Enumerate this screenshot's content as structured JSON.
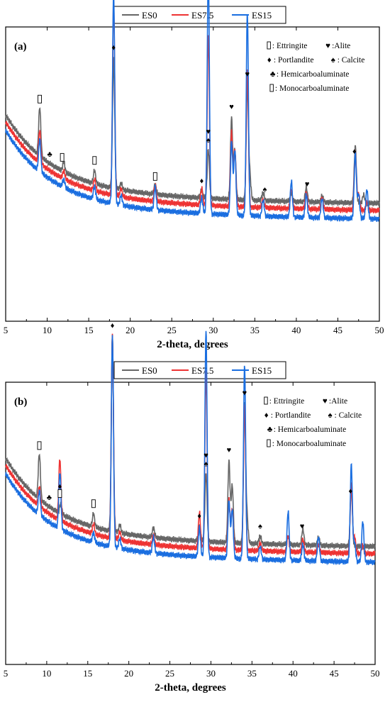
{
  "legend_items": [
    {
      "name": "ES0",
      "color": "#666666"
    },
    {
      "name": "ES7.5",
      "color": "#ee3333"
    },
    {
      "name": "ES15",
      "color": "#1a6ee0"
    }
  ],
  "phase_key": [
    {
      "symbol": "box",
      "text": ": Ettringite"
    },
    {
      "symbol": "♥",
      "text": ":Alite"
    },
    {
      "symbol": "♦",
      "text": ": Portlandite"
    },
    {
      "symbol": "♠",
      "text": ": Calcite"
    },
    {
      "symbol": "♣",
      "text": ": Hemicarboaluminate"
    },
    {
      "symbol": "box",
      "text": " : Monocarboaluminate"
    }
  ],
  "chart_data": [
    {
      "type": "line",
      "panel_label": "(a)",
      "xlabel": "2-theta, degrees",
      "ylabel": "",
      "xlim": [
        5,
        50
      ],
      "xticks": [
        5,
        10,
        15,
        20,
        25,
        30,
        35,
        40,
        45,
        50
      ],
      "y_axis": "arbitrary intensity, no tick labels",
      "grid": false,
      "legend_position": "top-center, outside plot",
      "series": [
        {
          "name": "ES0",
          "color": "#666666",
          "offset": 2.0,
          "peaks": [
            [
              9.1,
              0.3
            ],
            [
              12.0,
              0.06
            ],
            [
              15.7,
              0.08
            ],
            [
              18.0,
              0.8
            ],
            [
              18.9,
              0.04
            ],
            [
              23.0,
              0.06
            ],
            [
              28.6,
              0.05
            ],
            [
              29.4,
              0.3
            ],
            [
              32.2,
              0.5
            ],
            [
              32.6,
              0.3
            ],
            [
              34.1,
              0.7
            ],
            [
              34.4,
              0.15
            ],
            [
              36.0,
              0.05
            ],
            [
              39.4,
              0.05
            ],
            [
              41.2,
              0.09
            ],
            [
              43.1,
              0.04
            ],
            [
              47.1,
              0.35
            ],
            [
              48.1,
              0.05
            ]
          ]
        },
        {
          "name": "ES7.5",
          "color": "#ee3333",
          "offset": 1.0,
          "peaks": [
            [
              9.1,
              0.2
            ],
            [
              12.0,
              0.05
            ],
            [
              15.7,
              0.07
            ],
            [
              18.0,
              1.2
            ],
            [
              18.9,
              0.05
            ],
            [
              23.0,
              0.1
            ],
            [
              28.6,
              0.1
            ],
            [
              29.4,
              1.05
            ],
            [
              32.2,
              0.45
            ],
            [
              32.6,
              0.35
            ],
            [
              34.1,
              0.85
            ],
            [
              36.0,
              0.05
            ],
            [
              39.4,
              0.12
            ],
            [
              41.2,
              0.1
            ],
            [
              43.1,
              0.07
            ],
            [
              47.1,
              0.35
            ],
            [
              47.5,
              0.1
            ],
            [
              48.5,
              0.05
            ]
          ]
        },
        {
          "name": "ES15",
          "color": "#1a6ee0",
          "offset": 0.0,
          "peaks": [
            [
              9.1,
              0.2
            ],
            [
              12.0,
              0.05
            ],
            [
              15.7,
              0.08
            ],
            [
              18.0,
              1.3
            ],
            [
              18.9,
              0.06
            ],
            [
              23.0,
              0.14
            ],
            [
              28.6,
              0.1
            ],
            [
              29.4,
              1.5
            ],
            [
              32.2,
              0.45
            ],
            [
              32.6,
              0.4
            ],
            [
              34.1,
              1.25
            ],
            [
              36.0,
              0.1
            ],
            [
              39.4,
              0.22
            ],
            [
              41.2,
              0.14
            ],
            [
              43.1,
              0.12
            ],
            [
              47.1,
              0.4
            ],
            [
              47.5,
              0.15
            ],
            [
              48.5,
              0.18
            ]
          ]
        }
      ],
      "peak_labels": [
        {
          "x": 9.1,
          "symbol": "box"
        },
        {
          "x": 10.3,
          "symbol": "♣"
        },
        {
          "x": 11.8,
          "symbol": "box"
        },
        {
          "x": 15.7,
          "symbol": "box"
        },
        {
          "x": 18.0,
          "symbol": "♦"
        },
        {
          "x": 23.0,
          "symbol": "box"
        },
        {
          "x": 28.6,
          "symbol": "♦"
        },
        {
          "x": 29.4,
          "symbol": "♠"
        },
        {
          "x": 29.4,
          "symbol": "♥"
        },
        {
          "x": 32.2,
          "symbol": "♥"
        },
        {
          "x": 34.1,
          "symbol": "♥"
        },
        {
          "x": 36.2,
          "symbol": "♠"
        },
        {
          "x": 41.3,
          "symbol": "♥"
        },
        {
          "x": 47.0,
          "symbol": "♦"
        }
      ]
    },
    {
      "type": "line",
      "panel_label": "(b)",
      "xlabel": "2-theta, degrees",
      "ylabel": "",
      "xlim": [
        5,
        50
      ],
      "xticks": [
        5,
        10,
        15,
        20,
        25,
        30,
        35,
        40,
        45,
        50
      ],
      "y_axis": "arbitrary intensity, no tick labels",
      "grid": false,
      "legend_position": "top-center, outside plot",
      "series": [
        {
          "name": "ES0",
          "color": "#666666",
          "offset": 2.0,
          "peaks": [
            [
              9.1,
              0.28
            ],
            [
              11.7,
              0.06
            ],
            [
              15.7,
              0.08
            ],
            [
              18.0,
              1.2
            ],
            [
              18.9,
              0.05
            ],
            [
              23.0,
              0.06
            ],
            [
              28.6,
              0.1
            ],
            [
              29.4,
              0.42
            ],
            [
              32.2,
              0.5
            ],
            [
              32.6,
              0.35
            ],
            [
              34.1,
              0.85
            ],
            [
              34.4,
              0.15
            ],
            [
              36.0,
              0.05
            ],
            [
              39.4,
              0.05
            ],
            [
              41.2,
              0.1
            ],
            [
              43.1,
              0.05
            ],
            [
              47.1,
              0.38
            ]
          ]
        },
        {
          "name": "ES7.5",
          "color": "#ee3333",
          "offset": 1.0,
          "peaks": [
            [
              9.1,
              0.12
            ],
            [
              11.6,
              0.38
            ],
            [
              15.7,
              0.06
            ],
            [
              18.0,
              1.25
            ],
            [
              18.9,
              0.05
            ],
            [
              23.0,
              0.06
            ],
            [
              28.6,
              0.22
            ],
            [
              29.4,
              1.1
            ],
            [
              32.2,
              0.3
            ],
            [
              32.6,
              0.25
            ],
            [
              34.1,
              0.9
            ],
            [
              36.0,
              0.05
            ],
            [
              39.4,
              0.1
            ],
            [
              41.2,
              0.08
            ],
            [
              43.1,
              0.05
            ],
            [
              47.1,
              0.42
            ],
            [
              47.5,
              0.1
            ],
            [
              48.5,
              0.05
            ]
          ]
        },
        {
          "name": "ES15",
          "color": "#1a6ee0",
          "offset": 0.0,
          "peaks": [
            [
              9.1,
              0.15
            ],
            [
              11.6,
              0.35
            ],
            [
              15.7,
              0.06
            ],
            [
              18.0,
              1.3
            ],
            [
              18.9,
              0.06
            ],
            [
              23.0,
              0.1
            ],
            [
              28.6,
              0.18
            ],
            [
              29.4,
              1.4
            ],
            [
              32.2,
              0.35
            ],
            [
              32.6,
              0.3
            ],
            [
              34.1,
              1.2
            ],
            [
              36.0,
              0.08
            ],
            [
              39.4,
              0.3
            ],
            [
              41.2,
              0.1
            ],
            [
              43.1,
              0.15
            ],
            [
              47.1,
              0.6
            ],
            [
              47.5,
              0.12
            ],
            [
              48.5,
              0.25
            ]
          ]
        }
      ],
      "peak_labels": [
        {
          "x": 9.1,
          "symbol": "box"
        },
        {
          "x": 10.3,
          "symbol": "♣"
        },
        {
          "x": 11.6,
          "symbol": "box"
        },
        {
          "x": 11.6,
          "symbol": "♦"
        },
        {
          "x": 15.7,
          "symbol": "box"
        },
        {
          "x": 18.0,
          "symbol": "♦"
        },
        {
          "x": 28.6,
          "symbol": "♦"
        },
        {
          "x": 29.4,
          "symbol": "♠"
        },
        {
          "x": 29.4,
          "symbol": "♥"
        },
        {
          "x": 32.2,
          "symbol": "♥"
        },
        {
          "x": 34.1,
          "symbol": "♥"
        },
        {
          "x": 36.0,
          "symbol": "♠"
        },
        {
          "x": 41.1,
          "symbol": "♥"
        },
        {
          "x": 47.0,
          "symbol": "♦"
        }
      ]
    }
  ]
}
